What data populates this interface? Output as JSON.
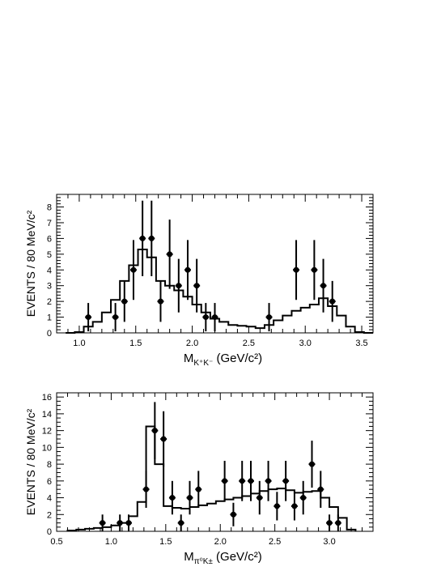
{
  "chart_data": [
    {
      "type": "histogram",
      "xlabel": "M",
      "xlabel_sub": "K⁺K⁻",
      "xlabel_unit": " (GeV/c²)",
      "ylabel": "EVENTS / 80 MeV/c²",
      "xlim": [
        0.8,
        3.6
      ],
      "ylim": [
        0,
        8.8
      ],
      "xticks": [
        "1.0",
        "1.5",
        "2.0",
        "2.5",
        "3.0",
        "3.5"
      ],
      "yticks": [
        "0",
        "1",
        "2",
        "3",
        "4",
        "5",
        "6",
        "7",
        "8"
      ],
      "bin_width": 0.08,
      "mc_hist": {
        "bin_lows": [
          0.88,
          0.96,
          1.04,
          1.12,
          1.2,
          1.28,
          1.36,
          1.44,
          1.52,
          1.6,
          1.68,
          1.76,
          1.84,
          1.92,
          2.0,
          2.08,
          2.16,
          2.24,
          2.32,
          2.4,
          2.48,
          2.56,
          2.64,
          2.72,
          2.8,
          2.88,
          2.96,
          3.04,
          3.12,
          3.2,
          3.28,
          3.36,
          3.44,
          3.52
        ],
        "values": [
          0,
          0.05,
          0.4,
          0.7,
          1.3,
          2.1,
          3.3,
          4.3,
          5.3,
          4.8,
          3.3,
          3.0,
          2.7,
          2.3,
          1.8,
          1.3,
          0.9,
          0.7,
          0.5,
          0.45,
          0.4,
          0.3,
          0.5,
          0.8,
          1.1,
          1.4,
          1.6,
          1.8,
          2.2,
          1.7,
          1.1,
          0.4,
          0.05,
          0
        ]
      },
      "data_points": {
        "x": [
          1.08,
          1.32,
          1.4,
          1.48,
          1.56,
          1.64,
          1.72,
          1.8,
          1.88,
          1.96,
          2.04,
          2.12,
          2.2,
          2.68,
          2.92,
          3.08,
          3.16,
          3.24
        ],
        "y": [
          1,
          1,
          2,
          4,
          6,
          6,
          2,
          5,
          3,
          4,
          3,
          1,
          1,
          1,
          4,
          4,
          3,
          2
        ],
        "err": [
          0.9,
          0.9,
          1.3,
          1.9,
          2.4,
          2.4,
          1.3,
          2.2,
          1.7,
          1.9,
          1.7,
          0.9,
          0.9,
          0.9,
          1.9,
          1.9,
          1.7,
          1.3
        ]
      }
    },
    {
      "type": "histogram",
      "xlabel": "M",
      "xlabel_sub": "π⁰K±",
      "xlabel_unit": " (GeV/c²)",
      "ylabel": "EVENTS / 80 MeV/c²",
      "xlim": [
        0.5,
        3.4
      ],
      "ylim": [
        0,
        16.5
      ],
      "xticks": [
        "0.5",
        "1.0",
        "1.5",
        "2.0",
        "2.5",
        "3.0"
      ],
      "yticks": [
        "0",
        "2",
        "4",
        "6",
        "8",
        "10",
        "12",
        "14",
        "16"
      ],
      "bin_width": 0.08,
      "mc_hist": {
        "bin_lows": [
          0.6,
          0.68,
          0.76,
          0.84,
          0.92,
          1.0,
          1.08,
          1.16,
          1.24,
          1.32,
          1.4,
          1.48,
          1.56,
          1.64,
          1.72,
          1.8,
          1.88,
          1.96,
          2.04,
          2.12,
          2.2,
          2.28,
          2.36,
          2.44,
          2.52,
          2.6,
          2.68,
          2.76,
          2.84,
          2.92,
          3.0,
          3.08,
          3.16
        ],
        "values": [
          0.1,
          0.2,
          0.3,
          0.4,
          0.5,
          0.7,
          1.0,
          1.8,
          3.5,
          12.5,
          8.0,
          3.0,
          2.8,
          2.7,
          2.9,
          3.1,
          3.3,
          3.6,
          3.8,
          4.0,
          4.2,
          4.5,
          4.8,
          5.0,
          5.1,
          4.9,
          4.6,
          4.7,
          4.8,
          4.0,
          2.9,
          1.6,
          0.2
        ]
      },
      "data_points": {
        "x": [
          0.92,
          1.08,
          1.16,
          1.32,
          1.4,
          1.48,
          1.56,
          1.64,
          1.72,
          1.8,
          2.04,
          2.12,
          2.2,
          2.28,
          2.36,
          2.44,
          2.52,
          2.6,
          2.68,
          2.76,
          2.84,
          2.92,
          3.0,
          3.08
        ],
        "y": [
          1,
          1,
          1,
          5,
          12,
          11,
          4,
          1,
          4,
          5,
          6,
          2,
          6,
          6,
          4,
          6,
          3,
          6,
          3,
          4,
          8,
          5,
          1,
          1
        ],
        "err": [
          1.0,
          1.0,
          1.0,
          2.2,
          3.4,
          3.3,
          2.0,
          1.0,
          2.0,
          2.2,
          2.4,
          1.4,
          2.4,
          2.4,
          2.0,
          2.4,
          1.7,
          2.4,
          1.7,
          2.0,
          2.8,
          2.2,
          1.0,
          1.0
        ]
      }
    }
  ]
}
